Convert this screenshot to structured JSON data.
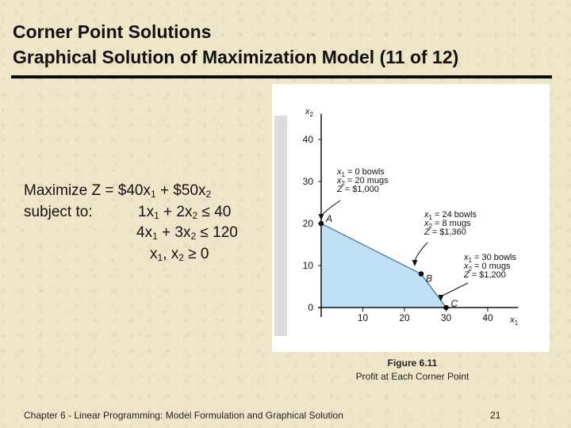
{
  "slide": {
    "title_line1": "Corner Point Solutions",
    "title_line2": "Graphical Solution of Maximization Model (11 of 12)",
    "footer_text": "Chapter 6 - Linear Programming: Model Formulation and Graphical Solution",
    "page_number": "21"
  },
  "model": {
    "objective": {
      "prefix": "Maximize Z = $40x",
      "s1": "1",
      "mid": " + $50x",
      "s2": "2"
    },
    "constraint_label": "subject to:",
    "c1": {
      "a": "1x",
      "s1": "1",
      "b": " + 2x",
      "s2": "2",
      "c": " ≤ 40"
    },
    "c2": {
      "a": "4x",
      "s1": "1",
      "b": " + 3x",
      "s2": "2",
      "c": " ≤ 120"
    },
    "c3": {
      "a": "x",
      "s1": "1",
      "b": ", x",
      "s2": "2",
      "c": " ≥ 0"
    }
  },
  "figure": {
    "caption_title": "Figure 6.11",
    "caption_text": "Profit at Each Corner Point"
  },
  "chart_data": {
    "type": "area",
    "xlabel": "x1",
    "ylabel": "x2",
    "xlim": [
      0,
      45
    ],
    "ylim": [
      0,
      45
    ],
    "x_ticks": [
      10,
      20,
      30,
      40
    ],
    "y_ticks": [
      0,
      10,
      20,
      30,
      40
    ],
    "feasible_region": [
      [
        0,
        0
      ],
      [
        0,
        20
      ],
      [
        24,
        8
      ],
      [
        30,
        0
      ]
    ],
    "fill_color": "#bfe0f5",
    "points": [
      {
        "label": "A",
        "x": 0,
        "y": 20,
        "annotation": [
          "x1 = 0 bowls",
          "x2 = 20 mugs",
          "Z = $1,000"
        ]
      },
      {
        "label": "B",
        "x": 24,
        "y": 8,
        "annotation": [
          "x1 = 24 bowls",
          "x2 = 8 mugs",
          "Z = $1,360"
        ]
      },
      {
        "label": "C",
        "x": 30,
        "y": 0,
        "annotation": [
          "x1 = 30 bowls",
          "x2 = 0 mugs",
          "Z = $1,200"
        ]
      }
    ]
  }
}
